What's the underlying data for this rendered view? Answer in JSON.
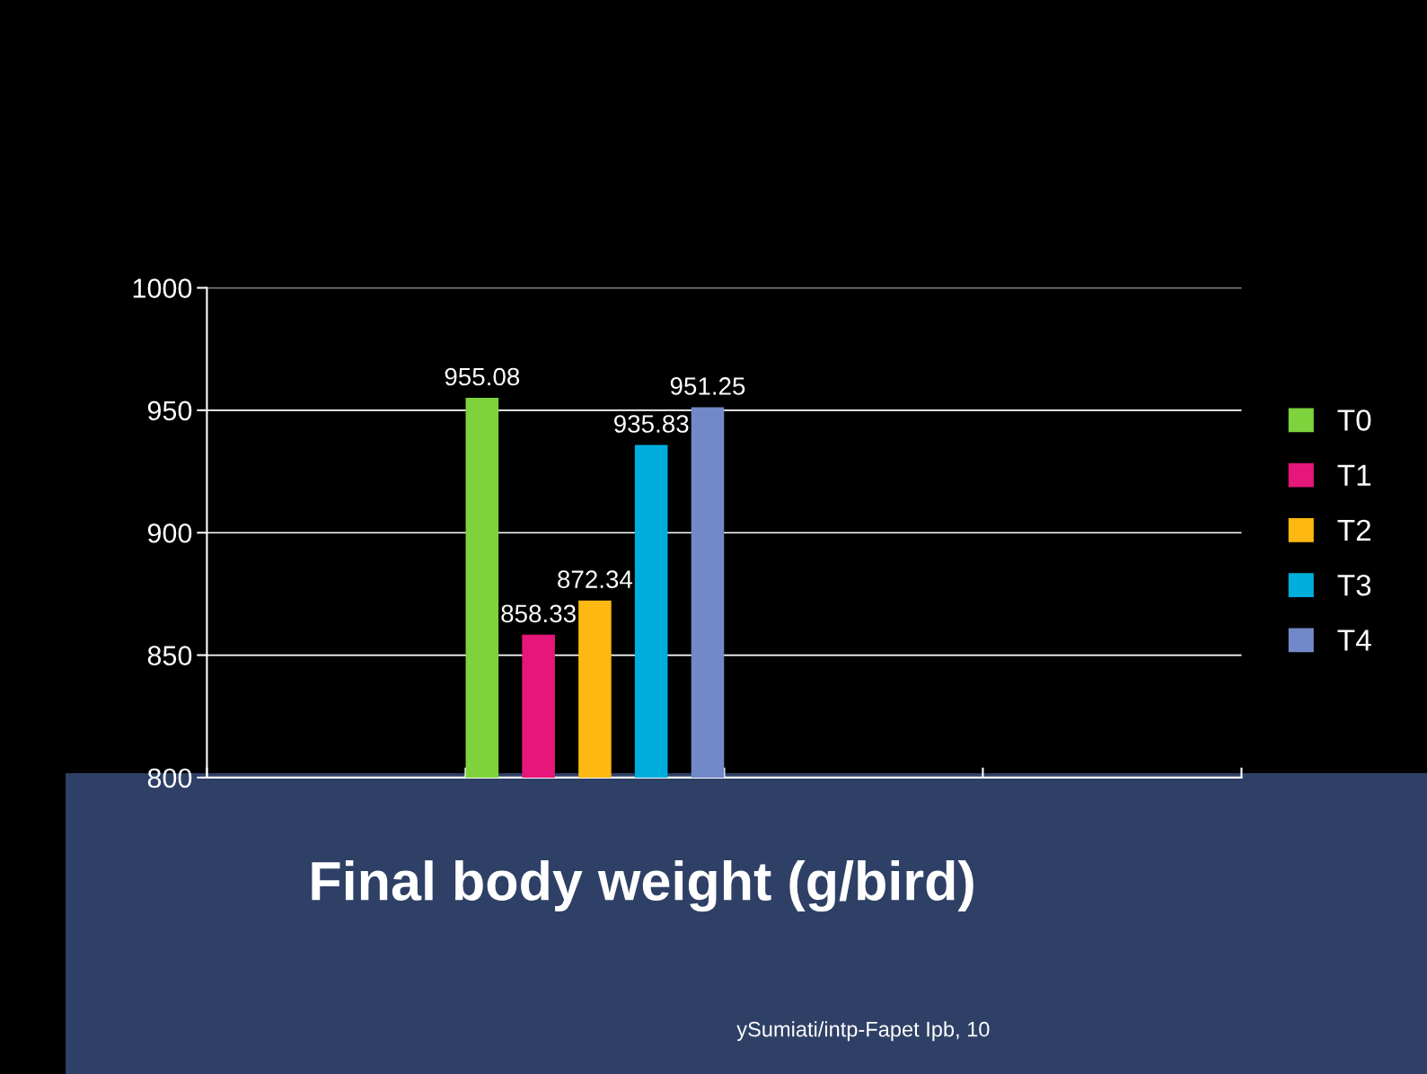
{
  "chart_data": {
    "type": "bar",
    "title": "Final body weight (g/bird)",
    "categories": [
      null,
      null,
      null,
      null
    ],
    "series": [
      {
        "name": "T0",
        "color": "#7ed33c",
        "values": [
          null,
          955.08,
          null,
          null
        ]
      },
      {
        "name": "T1",
        "color": "#e6177a",
        "values": [
          null,
          858.33,
          null,
          null
        ]
      },
      {
        "name": "T2",
        "color": "#fdb811",
        "values": [
          null,
          872.34,
          null,
          null
        ]
      },
      {
        "name": "T3",
        "color": "#00aedd",
        "values": [
          null,
          935.83,
          null,
          null
        ]
      },
      {
        "name": "T4",
        "color": "#7189c8",
        "values": [
          null,
          951.25,
          null,
          null
        ]
      }
    ],
    "ylim": [
      800,
      1000
    ],
    "yticks": [
      800,
      850,
      900,
      950,
      1000
    ],
    "grid": "y",
    "legend": "right",
    "data_labels": true,
    "annotations": [
      "ySumiati/intp-Fapet Ipb, 10"
    ]
  }
}
